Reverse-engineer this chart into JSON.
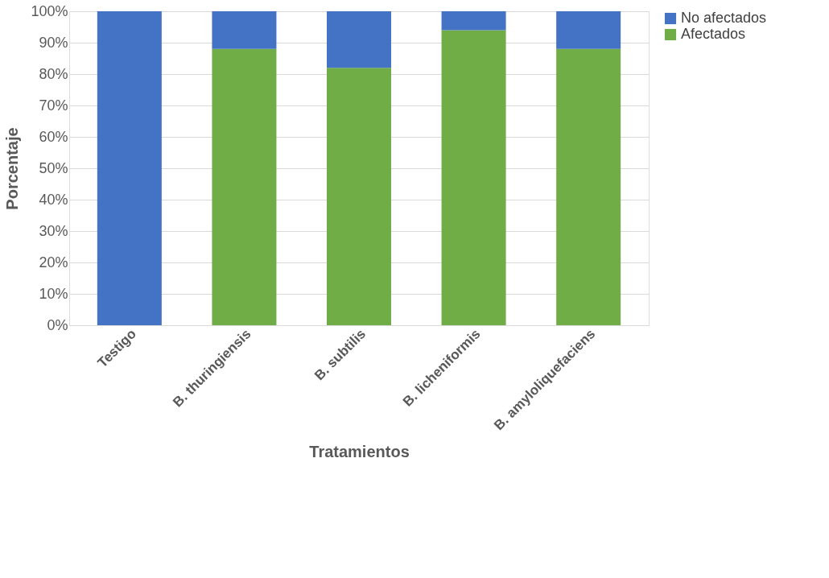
{
  "chart_data": {
    "type": "bar",
    "stacked": true,
    "xlabel": "Tratamientos",
    "ylabel": "Porcentaje",
    "categories": [
      "Testigo",
      "B. thuringiensis",
      "B. subtilis",
      "B. licheniformis",
      "B. amyloliquefaciens"
    ],
    "series": [
      {
        "name": "Afectados",
        "color": "#70ad47",
        "values": [
          0,
          88,
          82,
          94,
          88
        ]
      },
      {
        "name": "No afectados",
        "color": "#4472c4",
        "values": [
          100,
          12,
          18,
          6,
          12
        ]
      }
    ],
    "ylim": [
      0,
      100
    ],
    "yticks": [
      {
        "value": 0,
        "label": "0%"
      },
      {
        "value": 10,
        "label": "10%"
      },
      {
        "value": 20,
        "label": "20%"
      },
      {
        "value": 30,
        "label": "30%"
      },
      {
        "value": 40,
        "label": "40%"
      },
      {
        "value": 50,
        "label": "50%"
      },
      {
        "value": 60,
        "label": "60%"
      },
      {
        "value": 70,
        "label": "70%"
      },
      {
        "value": 80,
        "label": "80%"
      },
      {
        "value": 90,
        "label": "90%"
      },
      {
        "value": 100,
        "label": "100%"
      }
    ],
    "grid": "y",
    "legend": "right"
  }
}
